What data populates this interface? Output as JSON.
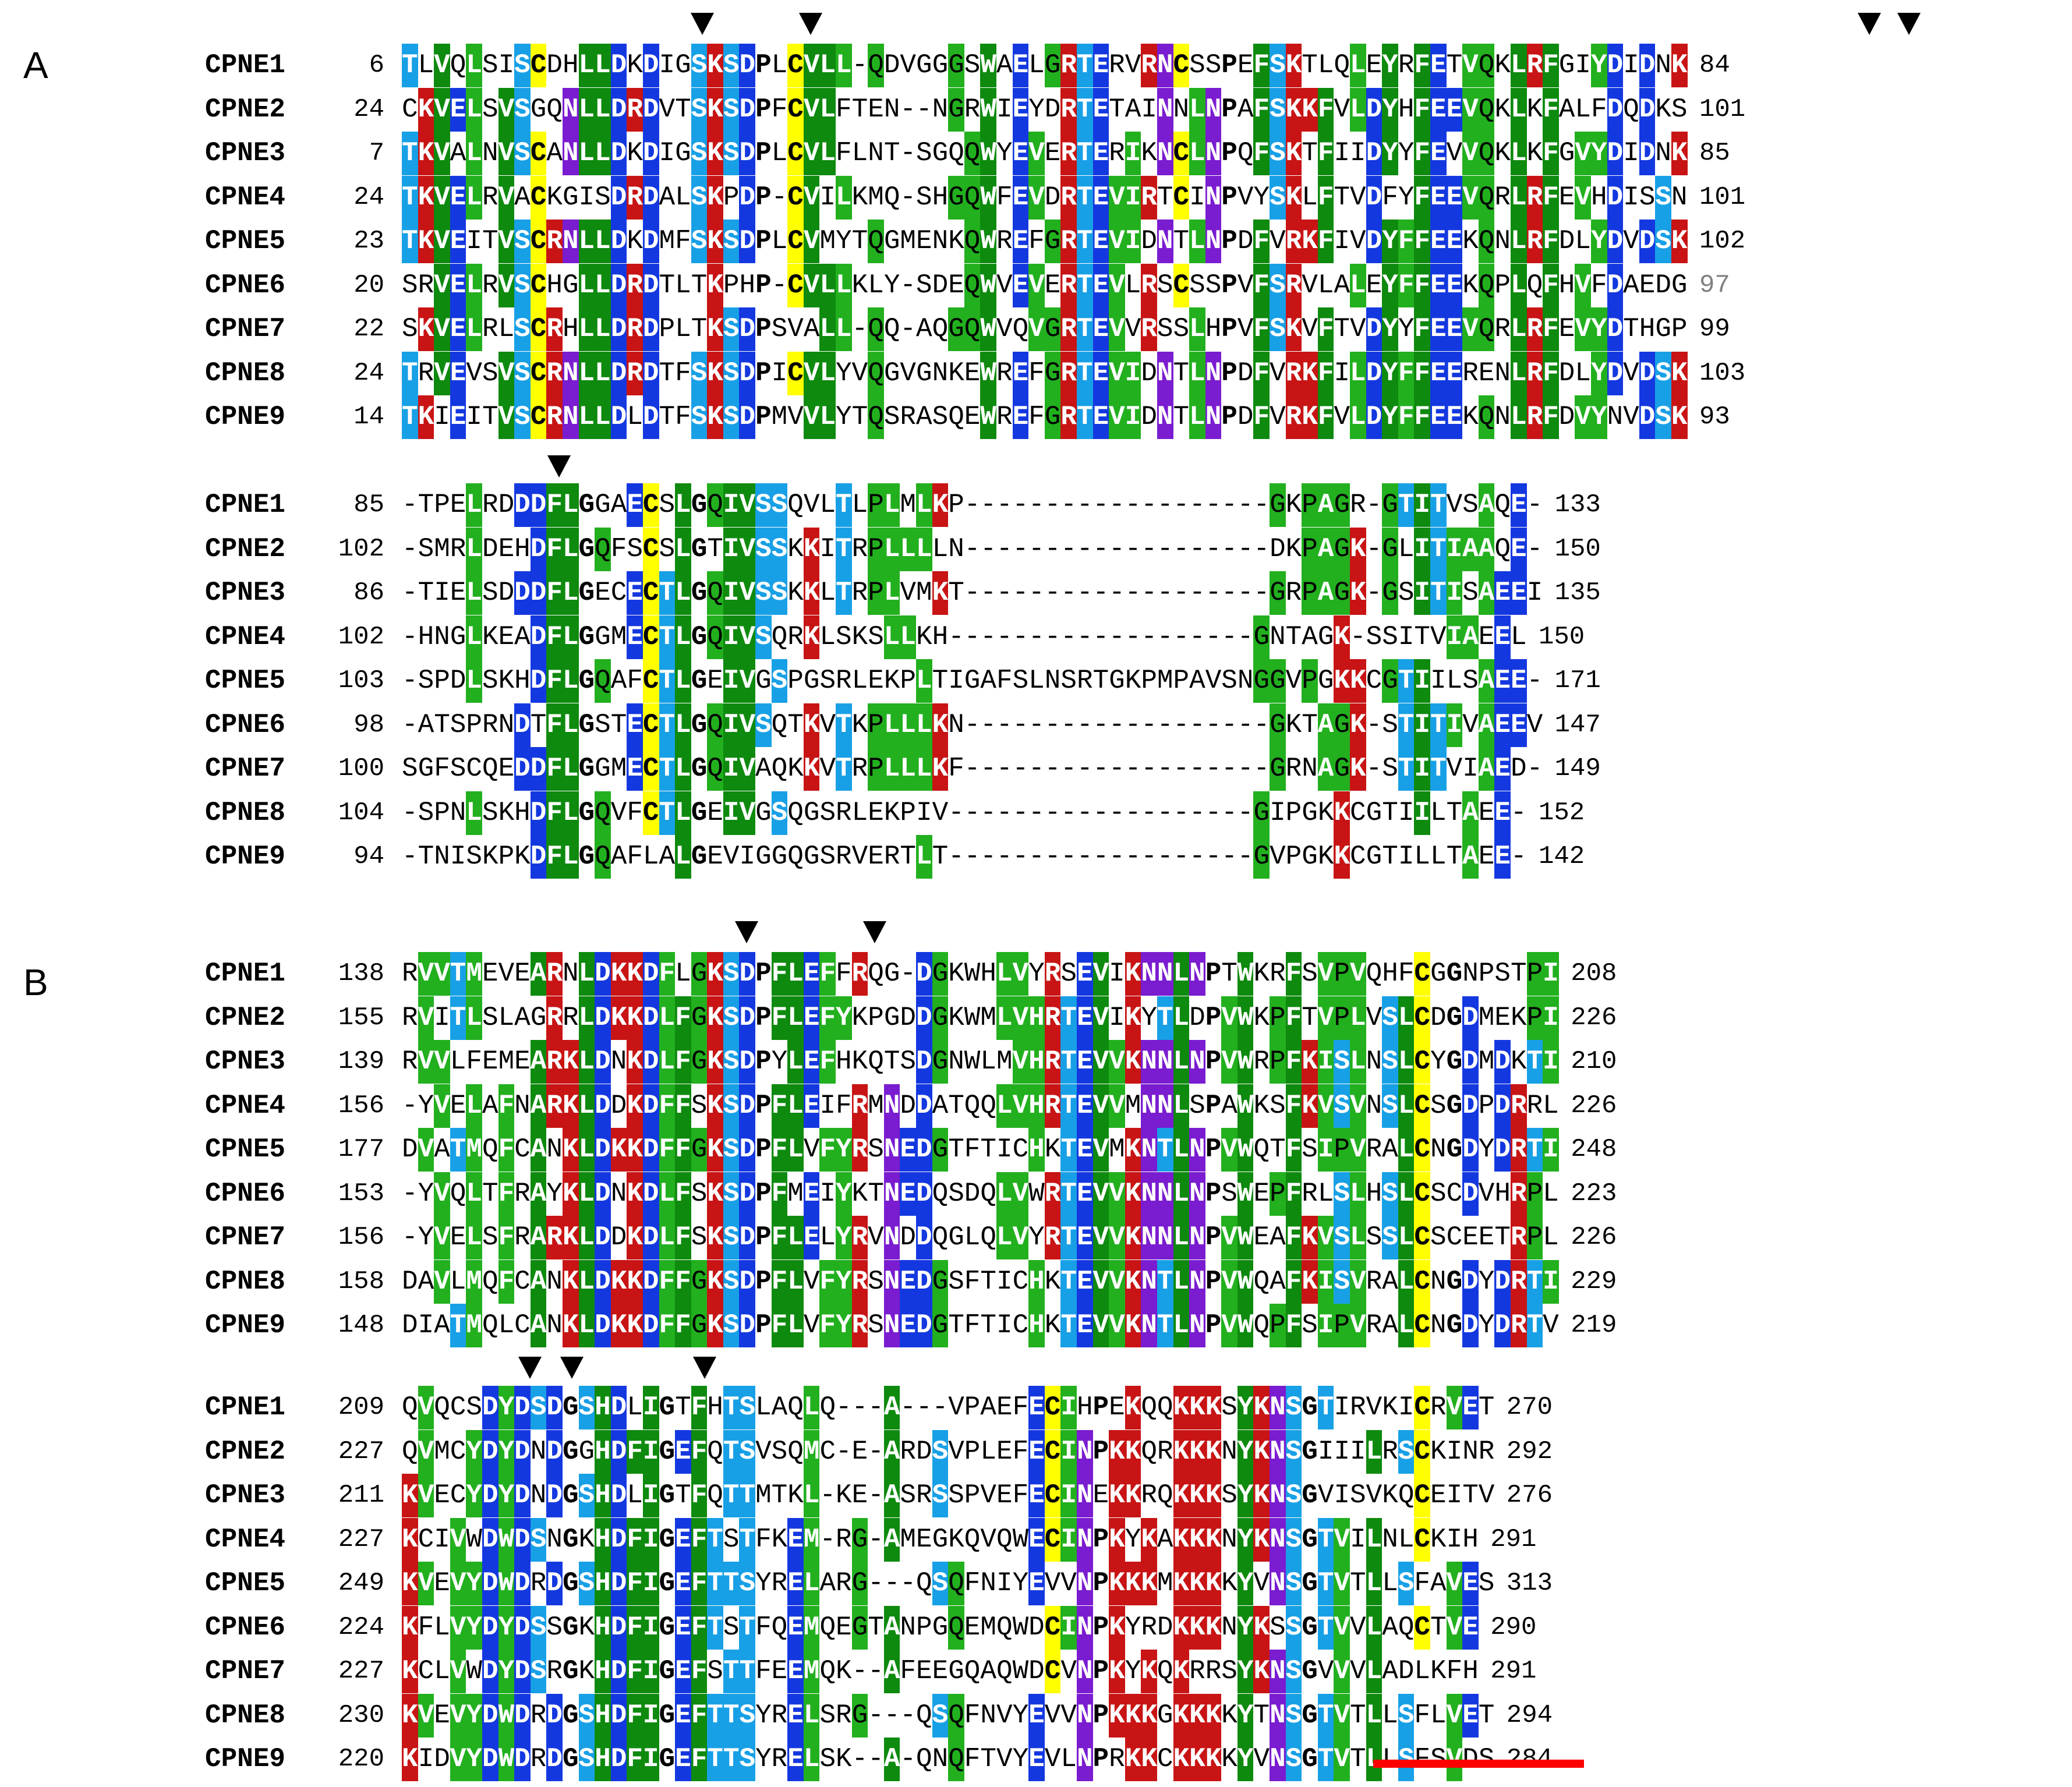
{
  "panels": [
    {
      "label": "A",
      "blocks": [
        {
          "rows": [
            {
              "name": "CPNE1",
              "start": "6",
              "seq": "TLVQLSISCDHLLDKDIGSKSDPLCVLL-QDVGGGSWAELGRTERVRNCSSPEFSKTLQLEYRFETVQKLRFGIYDIDNK",
              "end": "84"
            },
            {
              "name": "CPNE2",
              "start": "24",
              "seq": "CKVELSVSGQNLLDRDVTSKSDPFCVLFTEN--NGRWIEYDRTETAINNLNPAFSKKFVLDYHFEEVQKLKFALFDQDKS",
              "end": "101"
            },
            {
              "name": "CPNE3",
              "start": "7",
              "seq": "TKVALNVSCANLLDKDIGSKSDPLCVLFLNT-SGQQWYEVERTERIKNCLNPQFSKTFIIDYYFEVVQKLKFGVYDIDNK",
              "end": "85"
            },
            {
              "name": "CPNE4",
              "start": "24",
              "seq": "TKVELRVACKGISDRDALSKPDP-CVILKMQ-SHGQWFEVDRTEVIRTCINPVYSKLFTVDFYFEEVQRLRFEVHDISSN",
              "end": "101"
            },
            {
              "name": "CPNE5",
              "start": "23",
              "seq": "TKVEITVSCRNLLDKDMFSKSDPLCVMYTQGMENKQWREFGRTEVIDNTLNPDFVRKFIVDYFFEEKQNLRFDLYDVDSK",
              "end": "102"
            },
            {
              "name": "CPNE6",
              "start": "20",
              "seq": "SRVELRVSCHGLLDRDTLTKPHP-CVLLKLY-SDEQWVEVERTEVLRSCSSPVFSRVLALEYFFEEKQPLQFHVFDAEDG",
              "end": "97"
            },
            {
              "name": "CPNE7",
              "start": "22",
              "seq": "SKVELRLSCRHLLDRDPLTKSDPSVALL-QQ-AQGQWVQVGRTEVVRSSLHPVFSKVFTVDYYFEEVQRLRFEVYDTHGP",
              "end": "99"
            },
            {
              "name": "CPNE8",
              "start": "24",
              "seq": "TRVEVSVSCRNLLDRDTFSKSDPICVLYVQGVGNKEWREFGRTEVIDNTLNPDFVRKFILDYFFEERENLRFDLYDVDSK",
              "end": "103"
            },
            {
              "name": "CPNE9",
              "start": "14",
              "seq": "TKIEITVSCRNLLDLDTFSKSDPMVVLYTQSRASQEWREFGRTEVIDNTLNPDFVRKFVLDYFFEEKQNLRFDVYNVDSK",
              "end": "93"
            }
          ]
        },
        {
          "rows": [
            {
              "name": "CPNE1",
              "start": "85",
              "seq": "-TPELRDDDFLGGAECSLGQIVSSQVLTLPLMLKP-------------------GKPAGR-GTITVSAQE-",
              "end": "133"
            },
            {
              "name": "CPNE2",
              "start": "102",
              "seq": "-SMRLDEHDFLGQFSCSLGTIVSSKKITRPLLLLN-------------------DKPAGK-GLITIAAQE-",
              "end": "150"
            },
            {
              "name": "CPNE3",
              "start": "86",
              "seq": "-TIELSDDDFLGECECTLGQIVSSKKLTRPLVMKT-------------------GRPAGK-GSITISAEEI",
              "end": "135"
            },
            {
              "name": "CPNE4",
              "start": "102",
              "seq": "-HNGLKEADFLGGMECTLGQIVSQRKLSKSLLKH-------------------GNTAGK-SSITVIAEEL",
              "end": "150"
            },
            {
              "name": "CPNE5",
              "start": "103",
              "seq": "-SPDLSKHDFLGQAFCTLGEIVGSPGSRLEKPLTIGAFSLNSRTGKPMPAVSNGGVPGKKCGTIILSAEE-",
              "end": "171"
            },
            {
              "name": "CPNE6",
              "start": "98",
              "seq": "-ATSPRNDTFLGSTECTLGQIVSQTKVTKPLLLKN-------------------GKTAGK-STITIVAEEV",
              "end": "147"
            },
            {
              "name": "CPNE7",
              "start": "100",
              "seq": "SGFSCQEDDFLGGMECTLGQIVAQKKVTRPLLLKF-------------------GRNAGK-STITVIAED-",
              "end": "149"
            },
            {
              "name": "CPNE8",
              "start": "104",
              "seq": "-SPNLSKHDFLGQVFCTLGEIVGSQGSRLEKPIV-------------------GIPGKKCGTIILTAEE-",
              "end": "152"
            },
            {
              "name": "CPNE9",
              "start": "94",
              "seq": "-TNISKPKDFLGQAFLALGEVIGGQGSRVERTLT-------------------GVPGKKCGTILLTAEE-",
              "end": "142"
            }
          ]
        }
      ]
    },
    {
      "label": "B",
      "blocks": [
        {
          "rows": [
            {
              "name": "CPNE1",
              "start": "138",
              "seq": "RVVTMEVEARNLDKKDFLGKSDPFLEFFRQG-DGKWHLVYRSEVIKNNLNPTWKRFSVPVQHFCGGNPSTPI",
              "end": "208"
            },
            {
              "name": "CPNE2",
              "start": "155",
              "seq": "RVITLSLAGRRLDKKDLFGKSDPFLEFYKPGDDGKWMLVHRTEVIKYTLDPVWKPFTVPLVSLCDGDMEKPI",
              "end": "226"
            },
            {
              "name": "CPNE3",
              "start": "139",
              "seq": "RVVLFEMEARKLDNKDLFGKSDPYLEFHKQTSDGNWLMVHRTEVVKNNLNPVWRPFKISLNSLCYGDMDKTI",
              "end": "210"
            },
            {
              "name": "CPNE4",
              "start": "156",
              "seq": "-YVELAFNARKLDDKDFFSKSDPFLEIFRMNDDATQQLVHRTEVVMNNLSPAWKSFKVSVNSLCSGDPDRRL",
              "end": "226"
            },
            {
              "name": "CPNE5",
              "start": "177",
              "seq": "DVATMQFCANKLDKKDFFGKSDPFLVFYRSNEDGTFTICHKTEVMKNTLNPVWQTFSIPVRALCNGDYDRTI",
              "end": "248"
            },
            {
              "name": "CPNE6",
              "start": "153",
              "seq": "-YVQLTFRAYKLDNKDLFSKSDPFMEIYKTNEDQSDQLVWRTEVVKNNLNPSWEPFRLSLHSLCSCDVHRPL",
              "end": "223"
            },
            {
              "name": "CPNE7",
              "start": "156",
              "seq": "-YVELSFRARKLDDKDLFSKSDPFLELYRVNDDQGLQLVYRTEVVKNNLNPVWEAFKVSLSSLCSCEETRPL",
              "end": "226"
            },
            {
              "name": "CPNE8",
              "start": "158",
              "seq": "DAVLMQFCANKLDKKDFFGKSDPFLVFYRSNEDGSFTICHKTEVVKNTLNPVWQAFKISVRALCNGDYDRTI",
              "end": "229"
            },
            {
              "name": "CPNE9",
              "start": "148",
              "seq": "DIATMQLCANKLDKKDFFGKSDPFLVFYRSNEDGTFTICHKTEVVKNTLNPVWQPFSIPVRALCNGDYDRTV",
              "end": "219"
            }
          ]
        },
        {
          "rows": [
            {
              "name": "CPNE1",
              "start": "209",
              "seq": "QVQCSDYDSDGSHDLIGTFHTSLAQLQ---A---VPAEFECIHPEKQQKKKSYKNSGTIRVKICRVET",
              "end": "270"
            },
            {
              "name": "CPNE2",
              "start": "227",
              "seq": "QVMCYDYDNDGGHDFIGEFQTSVSQMC-E-ARDSVPLEFECINPKKQRKKKNYKNSGIIILRSCKINR",
              "end": "292"
            },
            {
              "name": "CPNE3",
              "start": "211",
              "seq": "KVECYDYDNDGSHDLIGTFQTTMTKL-KE-ASRSSPVEFECINEKKRQKKKSYKNSGVISVKQCEITV",
              "end": "276"
            },
            {
              "name": "CPNE4",
              "start": "227",
              "seq": "KCIVWDWDSNGKHDFIGEFTSTFKEM-RG-AMEGKQVQWECINPKYKAKKKNYKNSGTVILNLCKIH",
              "end": "291"
            },
            {
              "name": "CPNE5",
              "start": "249",
              "seq": "KVEVYDWDRDGSHDFIGEFTTSYRELARG---QSQFNIYEVVNPKKKMKKKKYVNSGTVTLLSFAVES",
              "end": "313"
            },
            {
              "name": "CPNE6",
              "start": "224",
              "seq": "KFLVYDYDSSGKHDFIGEFTSTFQEMQEGTANPGQEMQWDCINPKYRDKKKNYKSSGTVVLAQCTVE",
              "end": "290"
            },
            {
              "name": "CPNE7",
              "start": "227",
              "seq": "KCLVWDYDSRGKHDFIGEFSTTFEEMQK--AFEEGQAQWDCVNPKYKQKRRSYKNSGVVVLADLKFH",
              "end": "291"
            },
            {
              "name": "CPNE8",
              "start": "230",
              "seq": "KVEVYDWDRDGSHDFIGEFTTSYRELSRG---QSQFNVYEVVNPKKKGKKKKYTNSGTVTLLSFLVET",
              "end": "294"
            },
            {
              "name": "CPNE9",
              "start": "220",
              "seq": "KIDVYDWDRDGSHDFIGEFTTSYRELSK--A-QNQFTVYEVLNPRKKCKKKKYVNSGTVTLLSFSVDS",
              "end": "284"
            }
          ]
        }
      ]
    }
  ],
  "palette": {
    "green": "#22b01e",
    "dark_green": "#0e8a0e",
    "blue": "#1438e0",
    "light_blue": "#18a0e6",
    "red": "#c81414",
    "purple": "#7a1cd0",
    "yellow": "#ffff00",
    "annotation_bar": "#ff0000"
  },
  "icons": {
    "marker": "down-triangle-icon",
    "region": "red-underline-bar"
  }
}
